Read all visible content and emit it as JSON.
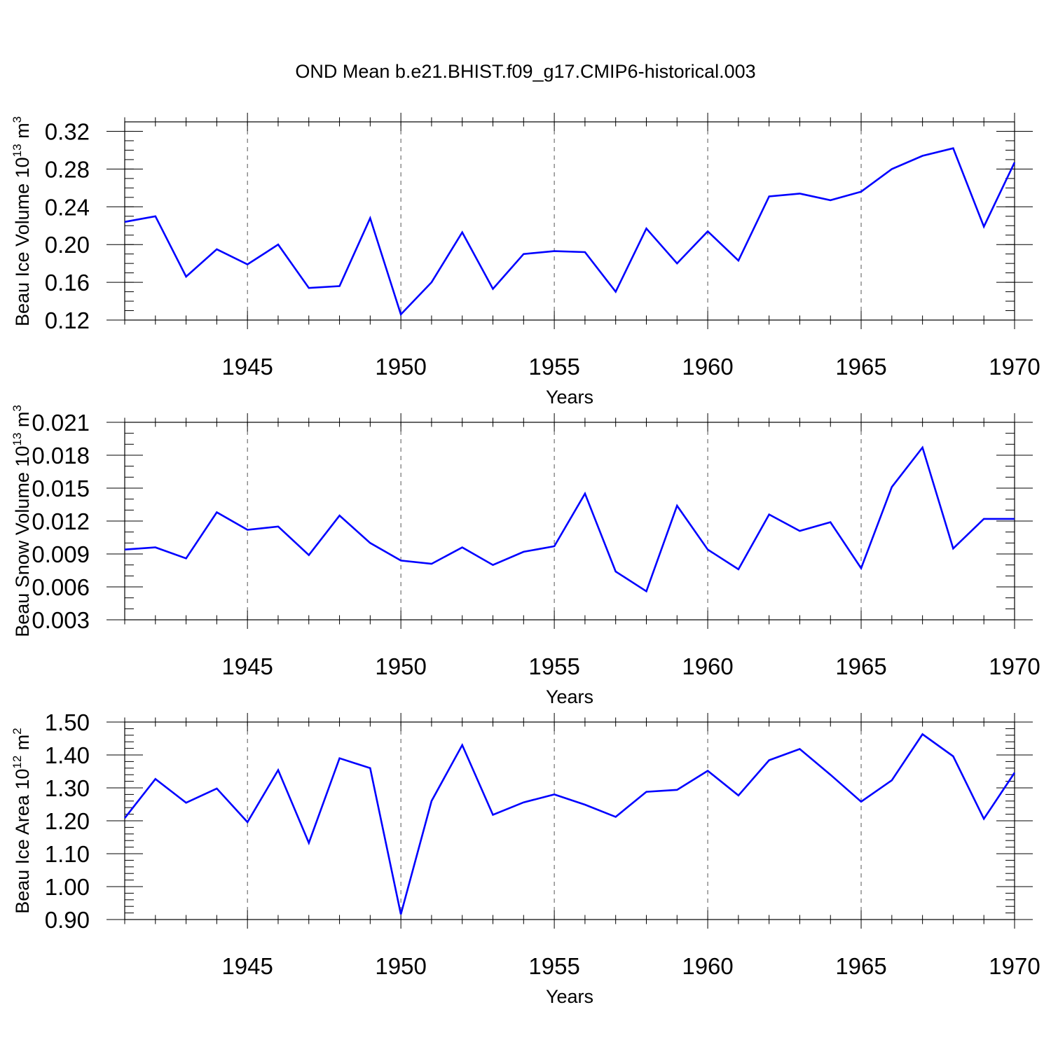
{
  "title": "OND Mean b.e21.BHIST.f09_g17.CMIP6-historical.003",
  "line_color": "#0000ff",
  "chart_data": [
    {
      "type": "line",
      "title": "OND Mean b.e21.BHIST.f09_g17.CMIP6-historical.003",
      "ylabel": "Beau Ice Volume 10",
      "ylabel_exp": "13",
      "ylabel_unit": "m",
      "ylabel_unit_exp": "3",
      "xlabel": "Years",
      "xlim": [
        1941,
        1970
      ],
      "ylim": [
        0.12,
        0.33
      ],
      "x_ticks": [
        1945,
        1950,
        1955,
        1960,
        1965,
        1970
      ],
      "x_tick_labels": [
        "1945",
        "1950",
        "1955",
        "1960",
        "1965",
        "1970"
      ],
      "y_ticks": [
        0.12,
        0.16,
        0.2,
        0.24,
        0.28,
        0.32
      ],
      "y_tick_labels": [
        "0.12",
        "0.16",
        "0.20",
        "0.24",
        "0.28",
        "0.32"
      ],
      "y_minor_step": 0.01,
      "grid": "vertical dashed at major x ticks",
      "x": [
        1941,
        1942,
        1943,
        1944,
        1945,
        1946,
        1947,
        1948,
        1949,
        1950,
        1951,
        1952,
        1953,
        1954,
        1955,
        1956,
        1957,
        1958,
        1959,
        1960,
        1961,
        1962,
        1963,
        1964,
        1965,
        1966,
        1967,
        1968,
        1969,
        1970
      ],
      "values": [
        0.224,
        0.23,
        0.166,
        0.195,
        0.179,
        0.2,
        0.154,
        0.156,
        0.228,
        0.126,
        0.16,
        0.213,
        0.153,
        0.19,
        0.193,
        0.192,
        0.15,
        0.217,
        0.18,
        0.214,
        0.183,
        0.251,
        0.254,
        0.247,
        0.256,
        0.28,
        0.294,
        0.302,
        0.219,
        0.287
      ]
    },
    {
      "type": "line",
      "ylabel": "Beau Snow Volume 10",
      "ylabel_exp": "13",
      "ylabel_unit": "m",
      "ylabel_unit_exp": "3",
      "xlabel": "Years",
      "xlim": [
        1941,
        1970
      ],
      "ylim": [
        0.003,
        0.021
      ],
      "x_ticks": [
        1945,
        1950,
        1955,
        1960,
        1965,
        1970
      ],
      "x_tick_labels": [
        "1945",
        "1950",
        "1955",
        "1960",
        "1965",
        "1970"
      ],
      "y_ticks": [
        0.003,
        0.006,
        0.009,
        0.012,
        0.015,
        0.018,
        0.021
      ],
      "y_tick_labels": [
        "0.003",
        "0.006",
        "0.009",
        "0.012",
        "0.015",
        "0.018",
        "0.021"
      ],
      "y_minor_step": 0.001,
      "grid": "vertical dashed at major x ticks",
      "x": [
        1941,
        1942,
        1943,
        1944,
        1945,
        1946,
        1947,
        1948,
        1949,
        1950,
        1951,
        1952,
        1953,
        1954,
        1955,
        1956,
        1957,
        1958,
        1959,
        1960,
        1961,
        1962,
        1963,
        1964,
        1965,
        1966,
        1967,
        1968,
        1969,
        1970
      ],
      "values": [
        0.0094,
        0.0096,
        0.0086,
        0.0128,
        0.0112,
        0.0115,
        0.0089,
        0.0125,
        0.01,
        0.0084,
        0.0081,
        0.0096,
        0.008,
        0.0092,
        0.0097,
        0.0145,
        0.0074,
        0.0056,
        0.0134,
        0.0094,
        0.0076,
        0.0126,
        0.0111,
        0.0119,
        0.0077,
        0.0151,
        0.0187,
        0.0095,
        0.0122,
        0.0122
      ]
    },
    {
      "type": "line",
      "ylabel": "Beau Ice Area 10",
      "ylabel_exp": "12",
      "ylabel_unit": "m",
      "ylabel_unit_exp": "2",
      "xlabel": "Years",
      "xlim": [
        1941,
        1970
      ],
      "ylim": [
        0.9,
        1.5
      ],
      "x_ticks": [
        1945,
        1950,
        1955,
        1960,
        1965,
        1970
      ],
      "x_tick_labels": [
        "1945",
        "1950",
        "1955",
        "1960",
        "1965",
        "1970"
      ],
      "y_ticks": [
        0.9,
        1.0,
        1.1,
        1.2,
        1.3,
        1.4,
        1.5
      ],
      "y_tick_labels": [
        "0.90",
        "1.00",
        "1.10",
        "1.20",
        "1.30",
        "1.40",
        "1.50"
      ],
      "y_minor_step": 0.02,
      "grid": "vertical dashed at major x ticks",
      "x": [
        1941,
        1942,
        1943,
        1944,
        1945,
        1946,
        1947,
        1948,
        1949,
        1950,
        1951,
        1952,
        1953,
        1954,
        1955,
        1956,
        1957,
        1958,
        1959,
        1960,
        1961,
        1962,
        1963,
        1964,
        1965,
        1966,
        1967,
        1968,
        1969,
        1970
      ],
      "values": [
        1.208,
        1.327,
        1.255,
        1.298,
        1.196,
        1.354,
        1.133,
        1.39,
        1.36,
        0.916,
        1.26,
        1.43,
        1.218,
        1.256,
        1.28,
        1.249,
        1.212,
        1.288,
        1.294,
        1.352,
        1.277,
        1.384,
        1.418,
        1.34,
        1.258,
        1.323,
        1.463,
        1.396,
        1.206,
        1.346
      ]
    }
  ]
}
